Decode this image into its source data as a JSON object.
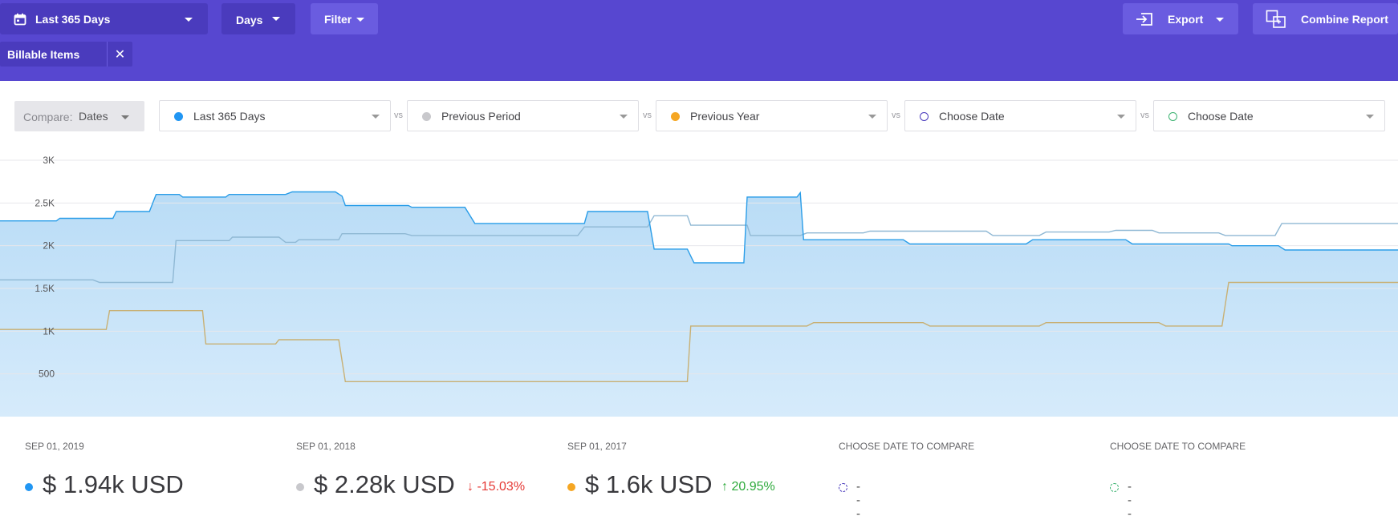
{
  "toolbar": {
    "date_range_label": "Last 365 Days",
    "interval_label": "Days",
    "filter_label": "Filter",
    "export_label": "Export",
    "combine_label": "Combine Report",
    "active_filter_chip": "Billable Items",
    "chip_remove": "✕"
  },
  "compare": {
    "label": "Compare:",
    "value": "Dates",
    "vs": "vs",
    "selectors": [
      {
        "label": "Last 365 Days",
        "color": "#2196f3",
        "filled": true
      },
      {
        "label": "Previous Period",
        "color": "#c8c8cc",
        "filled": true
      },
      {
        "label": "Previous Year",
        "color": "#f5a623",
        "filled": true
      },
      {
        "label": "Choose Date",
        "color": "#4a3bbd",
        "filled": false
      },
      {
        "label": "Choose Date",
        "color": "#3cb371",
        "filled": false
      }
    ]
  },
  "summary": [
    {
      "date": "SEP 01, 2019",
      "value": "$ 1.94k USD",
      "change": "",
      "dir": "",
      "color": "#2196f3"
    },
    {
      "date": "SEP 01, 2018",
      "value": "$ 2.28k USD",
      "change": "-15.03%",
      "dir": "down",
      "color": "#c8c8cc"
    },
    {
      "date": "SEP 01, 2017",
      "value": "$ 1.6k USD",
      "change": "20.95%",
      "dir": "up",
      "color": "#f5a623"
    },
    {
      "date": "CHOOSE DATE TO COMPARE",
      "value": "---",
      "change": "",
      "dir": "",
      "color": "#4a3bbd",
      "empty": true
    },
    {
      "date": "CHOOSE DATE TO COMPARE",
      "value": "---",
      "change": "",
      "dir": "",
      "color": "#3cb371",
      "empty": true
    }
  ],
  "chart_data": {
    "type": "area",
    "title": "",
    "xlabel": "",
    "ylabel": "",
    "ylim": [
      0,
      3000
    ],
    "yticks": [
      500,
      1000,
      1500,
      2000,
      2500,
      3000
    ],
    "ytick_labels": [
      "500",
      "1K",
      "1.5K",
      "2K",
      "2.5K",
      "3K"
    ],
    "grid": true,
    "x_count": 365,
    "series": [
      {
        "name": "Last 365 Days",
        "color": "#2a9de8",
        "fill": true,
        "points": [
          [
            0,
            2290
          ],
          [
            17,
            2290
          ],
          [
            18,
            2320
          ],
          [
            34,
            2320
          ],
          [
            35,
            2400
          ],
          [
            45,
            2400
          ],
          [
            47,
            2600
          ],
          [
            54,
            2600
          ],
          [
            55,
            2570
          ],
          [
            68,
            2570
          ],
          [
            69,
            2600
          ],
          [
            86,
            2600
          ],
          [
            88,
            2630
          ],
          [
            101,
            2630
          ],
          [
            103,
            2580
          ],
          [
            104,
            2470
          ],
          [
            123,
            2470
          ],
          [
            124,
            2450
          ],
          [
            140,
            2450
          ],
          [
            143,
            2260
          ],
          [
            176,
            2260
          ],
          [
            177,
            2400
          ],
          [
            195,
            2400
          ],
          [
            197,
            1960
          ],
          [
            207,
            1960
          ],
          [
            209,
            1800
          ],
          [
            224,
            1800
          ],
          [
            225,
            2570
          ],
          [
            240,
            2570
          ],
          [
            241,
            2620
          ],
          [
            242,
            2070
          ],
          [
            272,
            2070
          ],
          [
            274,
            2020
          ],
          [
            309,
            2020
          ],
          [
            311,
            2070
          ],
          [
            339,
            2070
          ],
          [
            341,
            2020
          ],
          [
            370,
            2020
          ],
          [
            371,
            2000
          ],
          [
            385,
            2000
          ],
          [
            387,
            1950
          ],
          [
            422,
            1950
          ]
        ]
      },
      {
        "name": "Previous Period",
        "color": "#8fb8d4",
        "fill": false,
        "points": [
          [
            0,
            1600
          ],
          [
            28,
            1600
          ],
          [
            30,
            1570
          ],
          [
            52,
            1570
          ],
          [
            53,
            2060
          ],
          [
            69,
            2060
          ],
          [
            70,
            2100
          ],
          [
            84,
            2100
          ],
          [
            86,
            2040
          ],
          [
            89,
            2040
          ],
          [
            90,
            2070
          ],
          [
            102,
            2070
          ],
          [
            103,
            2140
          ],
          [
            122,
            2140
          ],
          [
            124,
            2120
          ],
          [
            174,
            2120
          ],
          [
            176,
            2220
          ],
          [
            195,
            2220
          ],
          [
            197,
            2350
          ],
          [
            207,
            2350
          ],
          [
            208,
            2240
          ],
          [
            225,
            2240
          ],
          [
            226,
            2120
          ],
          [
            241,
            2120
          ],
          [
            243,
            2150
          ],
          [
            260,
            2150
          ],
          [
            262,
            2170
          ],
          [
            297,
            2170
          ],
          [
            299,
            2120
          ],
          [
            313,
            2120
          ],
          [
            315,
            2160
          ],
          [
            334,
            2160
          ],
          [
            336,
            2180
          ],
          [
            347,
            2180
          ],
          [
            349,
            2150
          ],
          [
            367,
            2150
          ],
          [
            369,
            2120
          ],
          [
            384,
            2120
          ],
          [
            386,
            2260
          ],
          [
            422,
            2260
          ]
        ]
      },
      {
        "name": "Previous Year",
        "color": "#c8b074",
        "fill": false,
        "points": [
          [
            0,
            1020
          ],
          [
            32,
            1020
          ],
          [
            33,
            1240
          ],
          [
            61,
            1240
          ],
          [
            62,
            850
          ],
          [
            83,
            850
          ],
          [
            84,
            900
          ],
          [
            102,
            900
          ],
          [
            104,
            410
          ],
          [
            207,
            410
          ],
          [
            208,
            1060
          ],
          [
            243,
            1060
          ],
          [
            245,
            1100
          ],
          [
            278,
            1100
          ],
          [
            280,
            1060
          ],
          [
            313,
            1060
          ],
          [
            315,
            1100
          ],
          [
            349,
            1100
          ],
          [
            351,
            1060
          ],
          [
            368,
            1060
          ],
          [
            370,
            1570
          ],
          [
            422,
            1570
          ]
        ]
      }
    ]
  }
}
